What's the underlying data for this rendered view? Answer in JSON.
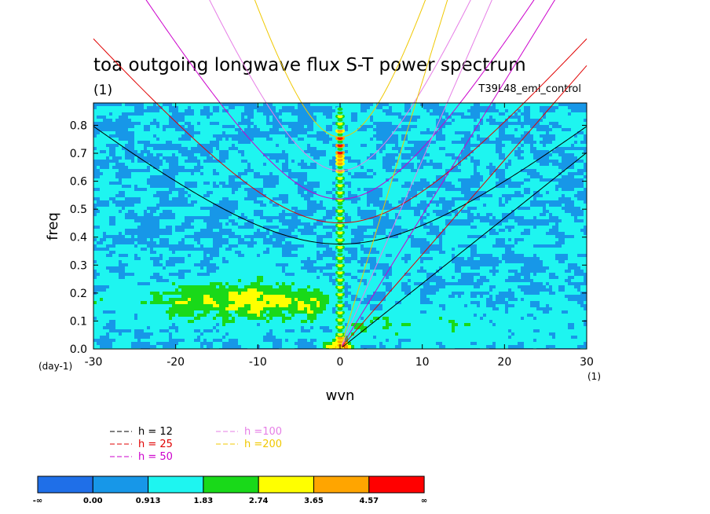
{
  "chart_data": {
    "type": "heatmap",
    "title": "toa outgoing longwave flux S-T power spectrum",
    "subtitle": "(1)",
    "tag": "T39L48_eml_control",
    "xlabel": "wvn",
    "ylabel": "freq",
    "x_unit": "(1)",
    "y_unit": "(day-1)",
    "xlim": [
      -30,
      30
    ],
    "ylim": [
      0,
      0.88
    ],
    "x_ticks": [
      -30,
      -20,
      -10,
      0,
      10,
      20,
      30
    ],
    "x_tick_labels": [
      "-30",
      "-20",
      "-10",
      "0",
      "10",
      "20",
      "30"
    ],
    "y_ticks": [
      0,
      0.1,
      0.2,
      0.3,
      0.4,
      0.5,
      0.6,
      0.7,
      0.8
    ],
    "y_tick_labels": [
      "0.0",
      "0.1",
      "0.2",
      "0.3",
      "0.4",
      "0.5",
      "0.6",
      "0.7",
      "0.8"
    ],
    "contour_levels": [
      "-∞",
      "0.00",
      "0.913",
      "1.83",
      "2.74",
      "3.65",
      "4.57",
      "∞"
    ],
    "contour_colors": [
      "#1f6fe8",
      "#1797e8",
      "#1ef5f0",
      "#19d919",
      "#ffff00",
      "#ffa500",
      "#ff0000"
    ],
    "dispersion_curves": [
      {
        "name": "h = 12",
        "h": 12,
        "color": "#000000"
      },
      {
        "name": "h = 25",
        "h": 25,
        "color": "#e00000"
      },
      {
        "name": "h = 50",
        "h": 50,
        "color": "#cc00cc"
      },
      {
        "name": "h =100",
        "h": 100,
        "color": "#e67ee6"
      },
      {
        "name": "h =200",
        "h": 200,
        "color": "#f0c800"
      }
    ],
    "field_features": [
      {
        "feature": "background",
        "level_index": 1
      },
      {
        "feature": "zonal-mean column at wvn 0",
        "level_index": 5,
        "peak_freq": 0.71
      },
      {
        "feature": "low-frequency westward ridge",
        "level_index": 3
      },
      {
        "feature": "low-frequency eastward ridge",
        "level_index": 2
      }
    ]
  }
}
